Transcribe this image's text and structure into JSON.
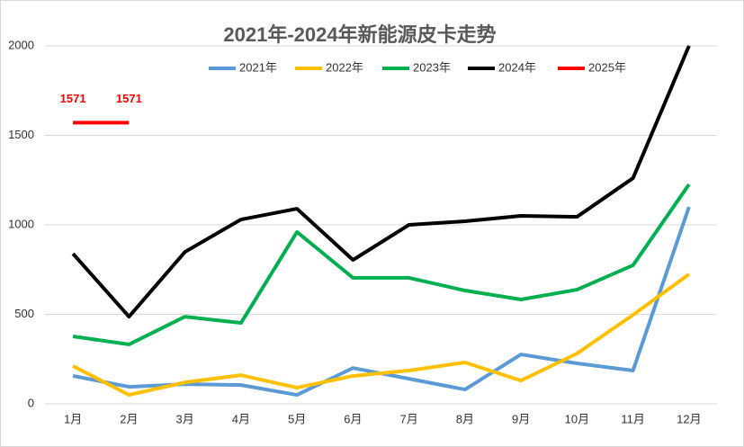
{
  "chart_data": {
    "type": "line",
    "title": "2021年-2024年新能源皮卡走势",
    "categories": [
      "1月",
      "2月",
      "3月",
      "4月",
      "5月",
      "6月",
      "7月",
      "8月",
      "9月",
      "10月",
      "11月",
      "12月"
    ],
    "series": [
      {
        "name": "2021年",
        "color": "#5b9bd5",
        "values": [
          156,
          95,
          110,
          105,
          50,
          200,
          140,
          80,
          276,
          226,
          186,
          1100
        ]
      },
      {
        "name": "2022年",
        "color": "#ffc000",
        "values": [
          211,
          50,
          120,
          160,
          90,
          156,
          186,
          231,
          130,
          281,
          497,
          724
        ]
      },
      {
        "name": "2023年",
        "color": "#00b050",
        "values": [
          377,
          332,
          487,
          452,
          960,
          704,
          704,
          633,
          583,
          638,
          774,
          1226
        ]
      },
      {
        "name": "2024年",
        "color": "#000000",
        "values": [
          839,
          487,
          849,
          1030,
          1090,
          804,
          1000,
          1020,
          1050,
          1045,
          1261,
          2000
        ]
      },
      {
        "name": "2025年",
        "color": "#ff0000",
        "values": [
          1571,
          1571,
          null,
          null,
          null,
          null,
          null,
          null,
          null,
          null,
          null,
          null
        ],
        "data_labels": true
      }
    ],
    "ylim": [
      0,
      2000
    ],
    "yticks": [
      0,
      500,
      1000,
      1500,
      2000
    ],
    "grid": true,
    "legend": "top"
  }
}
